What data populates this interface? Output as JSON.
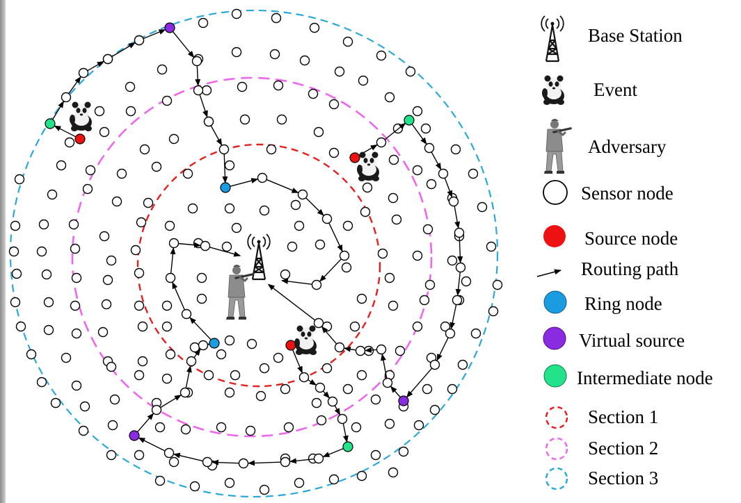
{
  "legend": {
    "base_station": "Base Station",
    "event": "Event",
    "adversary": "Adversary",
    "sensor_node": "Sensor node",
    "source_node": "Source node",
    "routing_path": "Routing path",
    "ring_node": "Ring node",
    "virtual_source": "Virtual source",
    "intermediate_node": "Intermediate node",
    "section1": "Section 1",
    "section2": "Section 2",
    "section3": "Section 3"
  },
  "colors": {
    "source": "#ee1111",
    "ring": "#1b9ce0",
    "virtual": "#8a2be2",
    "intermediate": "#22e38a",
    "section1": "#e61e1e",
    "section2": "#ee66ee",
    "section3": "#2aa8dc",
    "arrow": "#000000"
  },
  "icons": {
    "base_station": "radio-tower-icon",
    "event": "panda-icon",
    "adversary": "soldier-icon"
  }
}
